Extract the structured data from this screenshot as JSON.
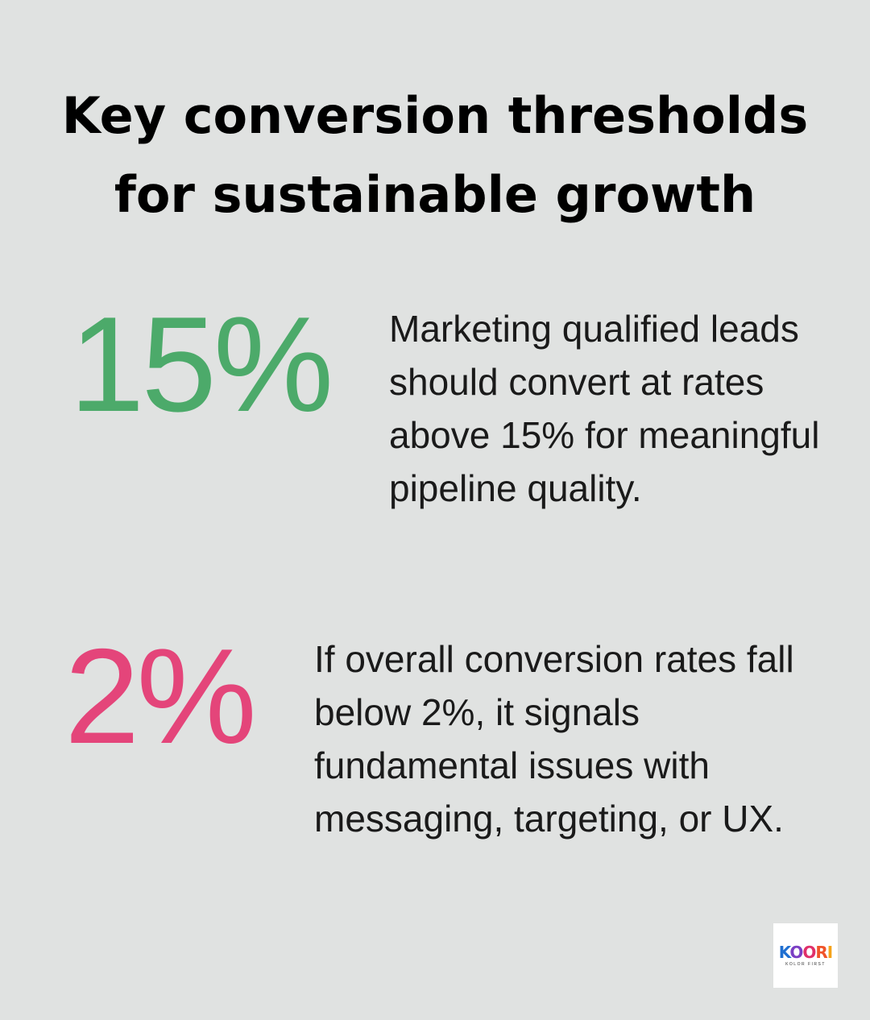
{
  "title_lines": [
    "Key conversion thresholds",
    "for sustainable growth"
  ],
  "stats": [
    {
      "value": "15%",
      "color": "#4caa6a",
      "text": "Marketing qualified leads should convert at rates above 15% for meaningful pipeline quality."
    },
    {
      "value": "2%",
      "color": "#e4457a",
      "text": "If overall conversion rates fall below 2%, it signals fundamental issues with messaging, targeting, or UX."
    }
  ],
  "logo": {
    "name": "KOORI",
    "tagline": "KOLOR FIRST"
  },
  "background": "#e0e2e1"
}
